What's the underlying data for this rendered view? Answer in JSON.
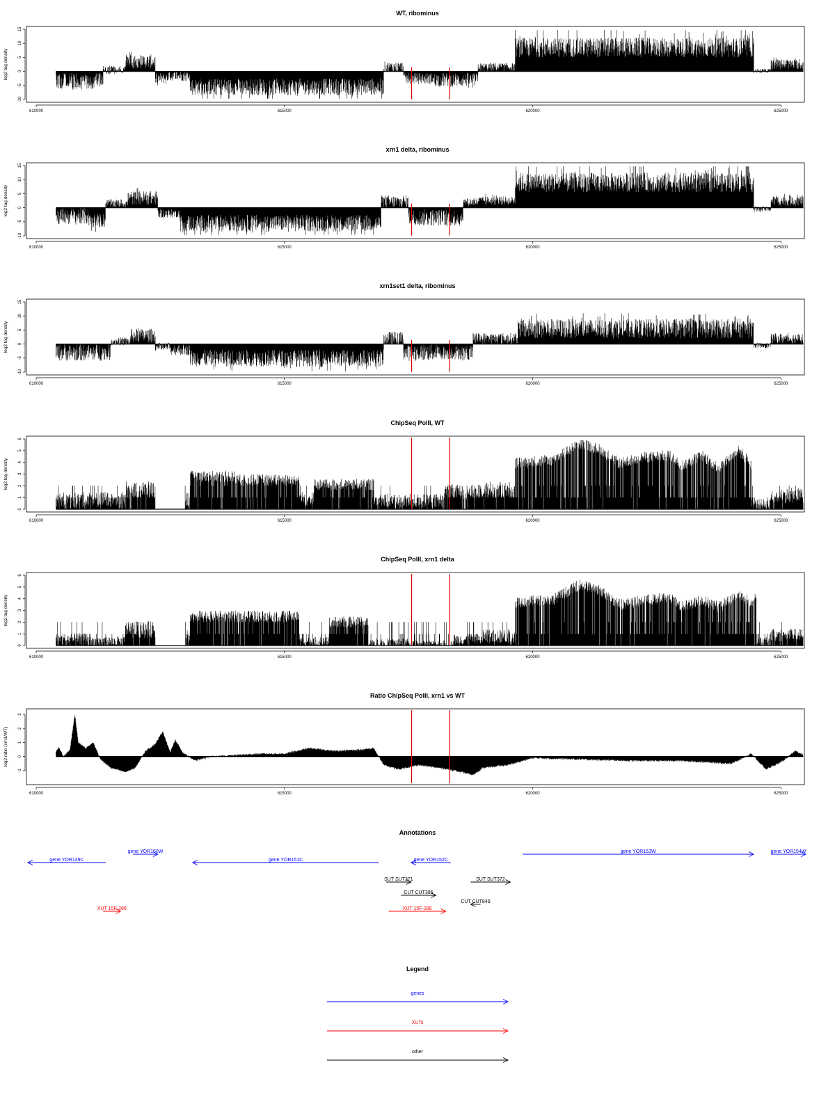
{
  "x_axis": {
    "min": 610000,
    "max": 625500,
    "ticks": [
      610000,
      615000,
      620000,
      625000
    ]
  },
  "markers": [
    617560,
    618330
  ],
  "marker_color": "#e00000",
  "chart_data": [
    {
      "type": "area",
      "title": "WT, ribominus",
      "ylabel": "log2 tag density",
      "ylim": [
        -10,
        15
      ],
      "yticks": [
        -10,
        -5,
        0,
        5,
        10,
        15
      ],
      "mode": "signed",
      "segments": [
        [
          610400,
          611350,
          -3.5,
          3.0
        ],
        [
          611350,
          611800,
          0.5,
          1.5
        ],
        [
          611800,
          612400,
          3.5,
          2.5
        ],
        [
          612400,
          612650,
          -2.5,
          2.0
        ],
        [
          612650,
          613100,
          -1.5,
          2.0
        ],
        [
          613100,
          617000,
          -5.5,
          3.0
        ],
        [
          617000,
          617400,
          1.5,
          2.0
        ],
        [
          617400,
          618000,
          -2.5,
          2.0
        ],
        [
          618000,
          618900,
          -3.0,
          2.5
        ],
        [
          618900,
          619650,
          1.5,
          1.5
        ],
        [
          619650,
          624450,
          8.5,
          3.5
        ],
        [
          624450,
          624800,
          0.2,
          0.8
        ],
        [
          624800,
          625450,
          2.5,
          1.8
        ]
      ]
    },
    {
      "type": "area",
      "title": "xrn1 delta, ribominus",
      "ylabel": "log2 tag density",
      "ylim": [
        -10,
        15
      ],
      "yticks": [
        -10,
        -5,
        0,
        5,
        10,
        15
      ],
      "mode": "signed",
      "segments": [
        [
          610400,
          611050,
          -3.0,
          3.0
        ],
        [
          611050,
          611400,
          -4.5,
          2.5
        ],
        [
          611400,
          611850,
          1.5,
          1.5
        ],
        [
          611850,
          612450,
          3.5,
          2.5
        ],
        [
          612450,
          612900,
          -2.0,
          1.5
        ],
        [
          612900,
          616950,
          -5.5,
          3.0
        ],
        [
          616950,
          617500,
          2.0,
          2.5
        ],
        [
          617500,
          618600,
          -3.5,
          3.0
        ],
        [
          618600,
          618900,
          2.0,
          1.5
        ],
        [
          618900,
          619650,
          2.5,
          1.5
        ],
        [
          619650,
          624450,
          9.0,
          3.5
        ],
        [
          624450,
          624800,
          -0.5,
          1.0
        ],
        [
          624800,
          625450,
          2.5,
          1.8
        ]
      ]
    },
    {
      "type": "area",
      "title": "xrn1set1 delta, ribominus",
      "ylabel": "log2 tag density",
      "ylim": [
        -10,
        15
      ],
      "yticks": [
        -10,
        -5,
        0,
        5,
        10,
        15
      ],
      "mode": "signed",
      "segments": [
        [
          610400,
          611500,
          -3.0,
          3.0
        ],
        [
          611500,
          611900,
          1.0,
          1.5
        ],
        [
          611900,
          612400,
          3.0,
          2.5
        ],
        [
          612400,
          612700,
          -1.0,
          1.5
        ],
        [
          612700,
          613100,
          -2.0,
          2.0
        ],
        [
          613100,
          617000,
          -5.0,
          3.0
        ],
        [
          617000,
          617400,
          2.0,
          2.5
        ],
        [
          617400,
          618100,
          -3.0,
          3.0
        ],
        [
          618100,
          618800,
          -3.0,
          2.5
        ],
        [
          618800,
          619700,
          2.0,
          2.0
        ],
        [
          619700,
          624450,
          5.5,
          3.5
        ],
        [
          624450,
          624800,
          -0.5,
          1.0
        ],
        [
          624800,
          625450,
          2.0,
          1.8
        ]
      ]
    },
    {
      "type": "area",
      "title": "ChipSeq PolII, WT",
      "ylabel": "log2 tag density",
      "ylim": [
        0,
        6
      ],
      "yticks": [
        0,
        1,
        2,
        3,
        4,
        5,
        6
      ],
      "mode": "positive",
      "segments": [
        [
          610400,
          611800,
          0.9,
          0.9
        ],
        [
          611800,
          612400,
          1.8,
          0.9
        ],
        [
          612400,
          613000,
          0.0,
          0.0
        ],
        [
          613000,
          613100,
          1.0,
          0.8
        ],
        [
          613100,
          614000,
          2.9,
          0.6
        ],
        [
          614000,
          615300,
          2.6,
          0.6
        ],
        [
          615300,
          615600,
          1.0,
          0.8
        ],
        [
          615600,
          616800,
          2.2,
          0.6
        ],
        [
          616800,
          617700,
          0.8,
          0.8
        ],
        [
          617700,
          618200,
          0.8,
          0.8
        ],
        [
          618200,
          618900,
          1.6,
          0.8
        ],
        [
          618900,
          619650,
          1.8,
          0.9
        ],
        [
          619650,
          624400,
          4.8,
          0.6
        ],
        [
          624400,
          624800,
          0.5,
          0.6
        ],
        [
          624800,
          625450,
          1.3,
          0.8
        ]
      ],
      "profile": [
        [
          619650,
          4.0
        ],
        [
          620400,
          4.3
        ],
        [
          620950,
          5.7
        ],
        [
          621350,
          5.2
        ],
        [
          621750,
          4.0
        ],
        [
          622200,
          4.5
        ],
        [
          622750,
          4.7
        ],
        [
          623000,
          3.8
        ],
        [
          623400,
          4.7
        ],
        [
          623750,
          3.6
        ],
        [
          624150,
          5.1
        ],
        [
          624400,
          4.0
        ]
      ]
    },
    {
      "type": "area",
      "title": "ChipSeq PolII, xrn1 delta",
      "ylabel": "log2 tag density",
      "ylim": [
        0,
        6
      ],
      "yticks": [
        0,
        1,
        2,
        3,
        4,
        5,
        6
      ],
      "mode": "positive",
      "segments": [
        [
          610400,
          611000,
          0.6,
          0.7
        ],
        [
          611000,
          611800,
          0.4,
          0.6
        ],
        [
          611800,
          612400,
          1.5,
          0.9
        ],
        [
          612400,
          613000,
          0.0,
          0.0
        ],
        [
          613000,
          613100,
          0.8,
          0.8
        ],
        [
          613100,
          615300,
          2.6,
          0.6
        ],
        [
          615300,
          615900,
          0.4,
          0.5
        ],
        [
          615900,
          616700,
          2.1,
          0.6
        ],
        [
          616700,
          617500,
          0.3,
          0.5
        ],
        [
          617500,
          618400,
          0.2,
          0.4
        ],
        [
          618400,
          619000,
          0.6,
          0.6
        ],
        [
          619000,
          619650,
          0.9,
          0.8
        ],
        [
          619650,
          624500,
          4.4,
          0.6
        ],
        [
          624500,
          624800,
          0.4,
          0.5
        ],
        [
          624800,
          625450,
          1.0,
          0.7
        ]
      ],
      "profile": [
        [
          619650,
          3.8
        ],
        [
          620400,
          4.0
        ],
        [
          620950,
          5.3
        ],
        [
          621350,
          4.8
        ],
        [
          621750,
          3.6
        ],
        [
          622300,
          4.0
        ],
        [
          622750,
          4.2
        ],
        [
          623000,
          3.4
        ],
        [
          623400,
          4.0
        ],
        [
          623750,
          3.4
        ],
        [
          624150,
          4.4
        ],
        [
          624450,
          3.6
        ]
      ]
    },
    {
      "type": "area",
      "title": "Ratio ChipSeq PolII, xrn1 vs WT",
      "ylabel": "log2 ratio (xrn1/WT)",
      "ylim": [
        -1.8,
        3.2
      ],
      "yticks": [
        -1,
        0,
        1,
        2,
        3
      ],
      "mode": "smooth",
      "profile": [
        [
          610400,
          0.3
        ],
        [
          610450,
          0.7
        ],
        [
          610550,
          0.0
        ],
        [
          610680,
          0.5
        ],
        [
          610780,
          3.0
        ],
        [
          610850,
          1.0
        ],
        [
          611000,
          0.6
        ],
        [
          611150,
          1.0
        ],
        [
          611300,
          -0.2
        ],
        [
          611500,
          -0.8
        ],
        [
          611800,
          -1.1
        ],
        [
          612000,
          -0.8
        ],
        [
          612200,
          0.4
        ],
        [
          612400,
          0.9
        ],
        [
          612550,
          1.8
        ],
        [
          612700,
          0.3
        ],
        [
          612800,
          1.2
        ],
        [
          612950,
          0.3
        ],
        [
          613200,
          -0.3
        ],
        [
          613500,
          0.0
        ],
        [
          614000,
          0.1
        ],
        [
          614500,
          0.2
        ],
        [
          615000,
          0.2
        ],
        [
          615500,
          0.6
        ],
        [
          616000,
          0.4
        ],
        [
          616600,
          0.5
        ],
        [
          616800,
          0.6
        ],
        [
          617000,
          -0.6
        ],
        [
          617300,
          -0.9
        ],
        [
          617700,
          -0.6
        ],
        [
          618300,
          -0.9
        ],
        [
          618800,
          -1.3
        ],
        [
          619000,
          -0.8
        ],
        [
          619500,
          -0.6
        ],
        [
          620000,
          -0.1
        ],
        [
          621000,
          -0.2
        ],
        [
          622000,
          -0.3
        ],
        [
          623000,
          -0.3
        ],
        [
          624000,
          -0.5
        ],
        [
          624400,
          0.2
        ],
        [
          624700,
          -0.9
        ],
        [
          625000,
          -0.4
        ],
        [
          625300,
          0.4
        ],
        [
          625450,
          0.1
        ]
      ]
    }
  ],
  "annotations": {
    "title": "Annotations",
    "colors": {
      "gene": "#0000ff",
      "xut": "#ff0000",
      "other": "#000000"
    },
    "items": [
      {
        "label": "gene YOR149C",
        "start": 611400,
        "end": 609800,
        "row": 1,
        "kind": "gene"
      },
      {
        "label": "gene YOR150W",
        "start": 611950,
        "end": 612450,
        "row": 0,
        "kind": "gene"
      },
      {
        "label": "gene YOR151C",
        "start": 616900,
        "end": 613150,
        "row": 1,
        "kind": "gene"
      },
      {
        "label": "gene YOR152C",
        "start": 618350,
        "end": 617550,
        "row": 1,
        "kind": "gene"
      },
      {
        "label": "gene YOR153W",
        "start": 619800,
        "end": 624450,
        "row": 0,
        "kind": "gene"
      },
      {
        "label": "gene YOR154W",
        "start": 624800,
        "end": 626000,
        "row": 0,
        "kind": "gene"
      },
      {
        "label": "SUT SUT371",
        "start": 617050,
        "end": 617550,
        "row": 2,
        "kind": "other"
      },
      {
        "label": "SUT SUT372",
        "start": 618750,
        "end": 619550,
        "row": 2,
        "kind": "other"
      },
      {
        "label": "CUT CUT385",
        "start": 617350,
        "end": 618050,
        "row": 3,
        "kind": "other"
      },
      {
        "label": "CUT CUT849",
        "start": 618950,
        "end": 618750,
        "row": 4,
        "kind": "other"
      },
      {
        "label": "XUT 15F-286",
        "start": 611350,
        "end": 611700,
        "row": 5,
        "kind": "xut"
      },
      {
        "label": "XUT 15F-288",
        "start": 617100,
        "end": 618250,
        "row": 5,
        "kind": "xut"
      }
    ]
  },
  "legend": {
    "title": "Legend",
    "entries": [
      {
        "label": "genes",
        "color": "#0000ff"
      },
      {
        "label": "XUTs",
        "color": "#ff0000"
      },
      {
        "label": "other",
        "color": "#000000"
      }
    ]
  }
}
